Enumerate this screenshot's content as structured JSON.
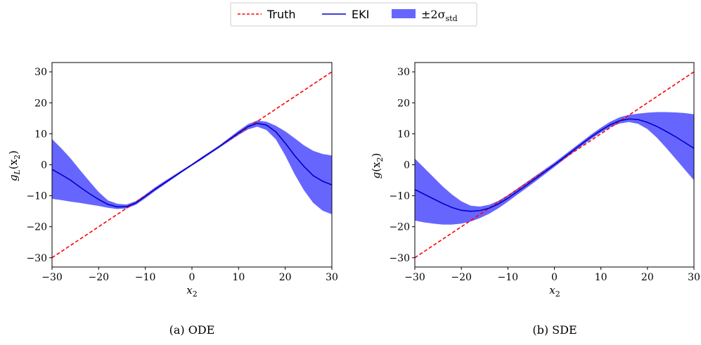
{
  "legend": {
    "position": "top-center",
    "entries": [
      {
        "label": "Truth",
        "style": "dashed-line",
        "color": "#ff0000"
      },
      {
        "label": "EKI",
        "style": "solid-line",
        "color": "#0000cc"
      },
      {
        "label": "±2σ",
        "label_sub": "std",
        "style": "patch",
        "color": "#6666ff"
      }
    ]
  },
  "chart_data": [
    {
      "type": "line",
      "caption": "(a) ODE",
      "xlabel": "x",
      "xlabel_sub": "2",
      "ylabel": "g",
      "ylabel_sub": "L",
      "ylabel_arg": "(x",
      "ylabel_arg_sub": "2",
      "xlim": [
        -30,
        30
      ],
      "ylim": [
        -33,
        33
      ],
      "xticks": [
        -30,
        -20,
        -10,
        0,
        10,
        20,
        30
      ],
      "xtick_labels": [
        "−30",
        "−20",
        "−10",
        "0",
        "10",
        "20",
        "30"
      ],
      "yticks": [
        -30,
        -20,
        -10,
        0,
        10,
        20,
        30
      ],
      "ytick_labels": [
        "−30",
        "−20",
        "−10",
        "0",
        "10",
        "20",
        "30"
      ],
      "grid": false,
      "x": [
        -30,
        -28,
        -26,
        -24,
        -22,
        -20,
        -18,
        -16,
        -14,
        -12,
        -10,
        -8,
        -6,
        -4,
        -2,
        0,
        2,
        4,
        6,
        8,
        10,
        12,
        14,
        16,
        18,
        20,
        22,
        24,
        26,
        28,
        30
      ],
      "series": [
        {
          "name": "Truth",
          "kind": "line",
          "dash": true,
          "color": "#ff0000",
          "values": [
            -30,
            -28,
            -26,
            -24,
            -22,
            -20,
            -18,
            -16,
            -14,
            -12,
            -10,
            -8,
            -6,
            -4,
            -2,
            0,
            2,
            4,
            6,
            8,
            10,
            12,
            14,
            16,
            18,
            20,
            22,
            24,
            26,
            28,
            30
          ]
        },
        {
          "name": "EKI",
          "kind": "line",
          "dash": false,
          "color": "#0000cc",
          "values": [
            -1.5,
            -3.2,
            -5.0,
            -7.2,
            -9.3,
            -11.2,
            -12.8,
            -13.6,
            -13.5,
            -12.3,
            -10.2,
            -8.0,
            -6.0,
            -4.0,
            -2.0,
            0,
            2.0,
            4.0,
            6.0,
            8.2,
            10.3,
            12.3,
            13.4,
            12.8,
            10.6,
            7.0,
            3.0,
            -0.5,
            -3.5,
            -5.3,
            -6.5
          ]
        },
        {
          "name": "±2σ std",
          "kind": "band",
          "color": "#6666ff",
          "lower": [
            -11.0,
            -11.4,
            -11.9,
            -12.3,
            -12.8,
            -13.3,
            -13.9,
            -14.3,
            -14.1,
            -12.9,
            -10.8,
            -8.6,
            -6.5,
            -4.4,
            -2.3,
            -0.3,
            1.6,
            3.6,
            5.6,
            7.6,
            9.6,
            11.4,
            12.3,
            11.2,
            8.2,
            3.0,
            -3.0,
            -8.2,
            -12.3,
            -14.8,
            -16.0
          ],
          "upper": [
            8.3,
            5.3,
            2.0,
            -1.7,
            -5.3,
            -8.8,
            -11.5,
            -12.6,
            -12.8,
            -11.7,
            -9.6,
            -7.4,
            -5.4,
            -3.5,
            -1.6,
            0.3,
            2.4,
            4.4,
            6.4,
            8.7,
            11.0,
            13.1,
            14.3,
            13.9,
            12.6,
            10.8,
            8.6,
            6.3,
            4.5,
            3.5,
            3.0
          ]
        }
      ]
    },
    {
      "type": "line",
      "caption": "(b) SDE",
      "xlabel": "x",
      "xlabel_sub": "2",
      "ylabel": "g",
      "ylabel_sub": "",
      "ylabel_arg": "(x",
      "ylabel_arg_sub": "2",
      "xlim": [
        -30,
        30
      ],
      "ylim": [
        -33,
        33
      ],
      "xticks": [
        -30,
        -20,
        -10,
        0,
        10,
        20,
        30
      ],
      "xtick_labels": [
        "−30",
        "−20",
        "−10",
        "0",
        "10",
        "20",
        "30"
      ],
      "yticks": [
        -30,
        -20,
        -10,
        0,
        10,
        20,
        30
      ],
      "ytick_labels": [
        "−30",
        "−20",
        "−10",
        "0",
        "10",
        "20",
        "30"
      ],
      "grid": false,
      "x": [
        -30,
        -28,
        -26,
        -24,
        -22,
        -20,
        -18,
        -16,
        -14,
        -12,
        -10,
        -8,
        -6,
        -4,
        -2,
        0,
        2,
        4,
        6,
        8,
        10,
        12,
        14,
        16,
        18,
        20,
        22,
        24,
        26,
        28,
        30
      ],
      "series": [
        {
          "name": "Truth",
          "kind": "line",
          "dash": true,
          "color": "#ff0000",
          "values": [
            -30,
            -28,
            -26,
            -24,
            -22,
            -20,
            -18,
            -16,
            -14,
            -12,
            -10,
            -8,
            -6,
            -4,
            -2,
            0,
            2,
            4,
            6,
            8,
            10,
            12,
            14,
            16,
            18,
            20,
            22,
            24,
            26,
            28,
            30
          ]
        },
        {
          "name": "EKI",
          "kind": "line",
          "dash": false,
          "color": "#0000cc",
          "values": [
            -8.0,
            -9.5,
            -11.0,
            -12.5,
            -13.8,
            -14.7,
            -15.0,
            -14.8,
            -14.0,
            -12.6,
            -10.8,
            -8.7,
            -6.6,
            -4.4,
            -2.2,
            0,
            2.3,
            4.6,
            6.9,
            9.1,
            11.1,
            12.9,
            14.2,
            14.8,
            14.6,
            13.7,
            12.4,
            10.8,
            9.1,
            7.2,
            5.3
          ]
        },
        {
          "name": "±2σ std",
          "kind": "band",
          "color": "#6666ff",
          "lower": [
            -18.0,
            -18.6,
            -19.0,
            -19.3,
            -19.3,
            -19.0,
            -18.3,
            -17.2,
            -15.8,
            -14.0,
            -11.9,
            -9.7,
            -7.5,
            -5.3,
            -3.0,
            -0.7,
            1.6,
            3.9,
            6.2,
            8.4,
            10.4,
            12.1,
            13.3,
            13.8,
            13.2,
            11.5,
            8.8,
            5.5,
            2.0,
            -1.5,
            -5.0
          ]
        },
        {
          "name": "",
          "kind": "band-upper-ref",
          "color": "#6666ff",
          "upper": [
            2.0,
            -1.0,
            -4.0,
            -7.0,
            -9.6,
            -11.8,
            -13.2,
            -13.5,
            -12.9,
            -11.6,
            -9.8,
            -7.7,
            -5.6,
            -3.5,
            -1.4,
            0.7,
            3.0,
            5.3,
            7.6,
            9.9,
            12.0,
            13.9,
            15.3,
            16.1,
            16.5,
            16.8,
            17.0,
            17.0,
            16.9,
            16.7,
            16.3
          ]
        }
      ]
    }
  ]
}
